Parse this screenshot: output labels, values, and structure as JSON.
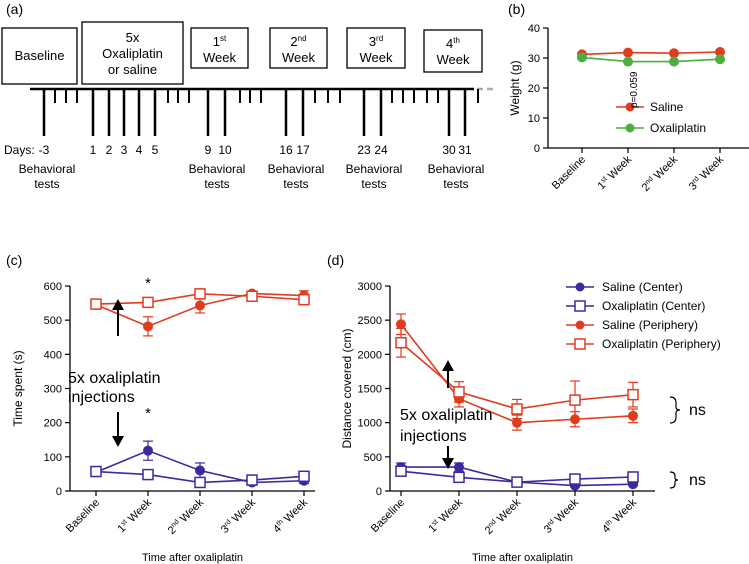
{
  "panel_labels": {
    "a": "(a)",
    "b": "(b)",
    "c": "(c)",
    "d": "(d)"
  },
  "timeline": {
    "boxes": [
      {
        "line1": "Baseline",
        "line2": "",
        "line3": ""
      },
      {
        "line1": "5x",
        "line2": "Oxaliplatin",
        "line3": "or saline"
      },
      {
        "line1": "1",
        "sup": "st",
        "line2": "Week"
      },
      {
        "line1": "2",
        "sup": "nd",
        "line2": "Week"
      },
      {
        "line1": "3",
        "sup": "rd",
        "line2": "Week"
      },
      {
        "line1": "4",
        "sup": "th",
        "line2": "Week"
      }
    ],
    "days_label": "Days:",
    "days": [
      "-3",
      "1",
      "2",
      "3",
      "4",
      "5",
      "9",
      "10",
      "16",
      "17",
      "23",
      "24",
      "30",
      "31"
    ],
    "behavior_label_line1": "Behavioral",
    "behavior_label_line2": "tests"
  },
  "annotations": {
    "p_value": "p=0.059",
    "star": "*",
    "injections_line1": "5x oxaliplatin",
    "injections_line2": "injections",
    "ns": "ns"
  },
  "chart_data": [
    {
      "id": "b",
      "type": "line",
      "title": "",
      "xlabel": "",
      "ylabel": "Weight (g)",
      "ylim": [
        0,
        40
      ],
      "yticks": [
        "0",
        "10",
        "20",
        "30",
        "40"
      ],
      "categories": [
        "Baseline",
        "1",
        "2",
        "3"
      ],
      "category_sups": [
        "",
        "st",
        "nd",
        "rd"
      ],
      "category_suffix": [
        "",
        " Week",
        " Week",
        " Week"
      ],
      "series": [
        {
          "name": "Saline",
          "color": "#e03c1f",
          "marker": "circle",
          "values": [
            31.2,
            31.8,
            31.6,
            32.0
          ]
        },
        {
          "name": "Oxaliplatin",
          "color": "#4cae3f",
          "marker": "circle",
          "values": [
            30.2,
            28.8,
            28.8,
            29.6
          ]
        }
      ]
    },
    {
      "id": "c",
      "type": "line",
      "xlabel": "Time after oxaliplatin",
      "ylabel": "Time spent (s)",
      "ylim": [
        0,
        600
      ],
      "yticks": [
        "0",
        "100",
        "200",
        "300",
        "400",
        "500",
        "600"
      ],
      "categories": [
        "Baseline",
        "1",
        "2",
        "3",
        "4"
      ],
      "category_sups": [
        "",
        "st",
        "nd",
        "rd",
        "th"
      ],
      "category_suffix": [
        "",
        " Week",
        " Week",
        " Week",
        " Week"
      ],
      "series": [
        {
          "name": "Saline (Center)",
          "color": "#3b2aa0",
          "marker": "circle",
          "values": [
            55,
            118,
            60,
            25,
            30
          ],
          "errors": [
            6,
            28,
            22,
            6,
            8
          ]
        },
        {
          "name": "Oxaliplatin (Center)",
          "color": "#3b2aa0",
          "marker": "square-open",
          "values": [
            57,
            48,
            25,
            32,
            43
          ],
          "errors": [
            6,
            8,
            6,
            6,
            6
          ]
        },
        {
          "name": "Saline (Periphery)",
          "color": "#e03c1f",
          "marker": "circle",
          "values": [
            545,
            482,
            543,
            578,
            572
          ],
          "errors": [
            6,
            28,
            22,
            6,
            14
          ]
        },
        {
          "name": "Oxaliplatin (Periphery)",
          "color": "#e03c1f",
          "marker": "square-open",
          "values": [
            547,
            552,
            577,
            570,
            560
          ],
          "errors": [
            6,
            8,
            6,
            6,
            8
          ]
        }
      ]
    },
    {
      "id": "d",
      "type": "line",
      "xlabel": "Time after oxaliplatin",
      "ylabel": "Distance covered (cm)",
      "ylim": [
        0,
        3000
      ],
      "yticks": [
        "0",
        "500",
        "1000",
        "1500",
        "2000",
        "2500",
        "3000"
      ],
      "categories": [
        "Baseline",
        "1",
        "2",
        "3",
        "4"
      ],
      "category_sups": [
        "",
        "st",
        "nd",
        "rd",
        "th"
      ],
      "category_suffix": [
        "",
        " Week",
        " Week",
        " Week",
        " Week"
      ],
      "series": [
        {
          "name": "Saline (Center)",
          "color": "#3b2aa0",
          "marker": "circle",
          "values": [
            350,
            350,
            130,
            80,
            100
          ],
          "errors": [
            60,
            60,
            30,
            20,
            20
          ]
        },
        {
          "name": "Oxaliplatin (Center)",
          "color": "#3b2aa0",
          "marker": "square-open",
          "values": [
            290,
            200,
            130,
            175,
            205
          ],
          "errors": [
            50,
            40,
            30,
            40,
            40
          ]
        },
        {
          "name": "Saline (Periphery)",
          "color": "#e03c1f",
          "marker": "circle",
          "values": [
            2440,
            1350,
            1000,
            1050,
            1100
          ],
          "errors": [
            150,
            120,
            110,
            110,
            100
          ]
        },
        {
          "name": "Oxaliplatin (Periphery)",
          "color": "#e03c1f",
          "marker": "square-open",
          "values": [
            2170,
            1450,
            1200,
            1330,
            1410
          ],
          "errors": [
            210,
            150,
            140,
            280,
            180
          ]
        }
      ]
    }
  ]
}
